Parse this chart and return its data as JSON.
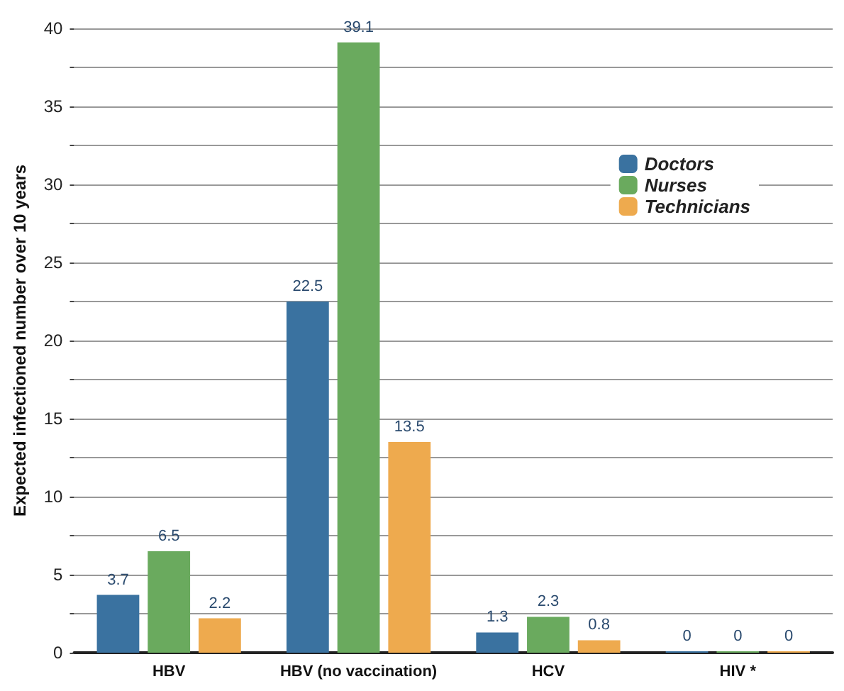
{
  "chart_data": {
    "type": "bar",
    "ylabel": "Expected infectioned number over 10 years",
    "categories": [
      "HBV",
      "HBV (no vaccination)",
      "HCV",
      "HIV *"
    ],
    "series": [
      {
        "name": "Doctors",
        "color": "#3a72a0",
        "values": [
          3.7,
          22.5,
          1.3,
          0
        ]
      },
      {
        "name": "Nurses",
        "color": "#6aaa5e",
        "values": [
          6.5,
          39.1,
          2.3,
          0
        ]
      },
      {
        "name": "Technicians",
        "color": "#eeaa4e",
        "values": [
          2.2,
          13.5,
          0.8,
          0
        ]
      }
    ],
    "ylim": [
      0,
      40
    ],
    "yticks": [
      0,
      {
        "value": 2.5,
        "label": null
      },
      5,
      {
        "value": 7.5,
        "label": null
      },
      10,
      {
        "value": 12.5,
        "label": null
      },
      15,
      {
        "value": 17.5,
        "label": null
      },
      20,
      {
        "value": 22.5,
        "label": null
      },
      25,
      {
        "value": 27.5,
        "label": null
      },
      30,
      {
        "value": 32.5,
        "label": null
      },
      35,
      {
        "value": 37.5,
        "label": null
      },
      40
    ],
    "grid": true,
    "legend": "top right",
    "data_labels": true
  }
}
